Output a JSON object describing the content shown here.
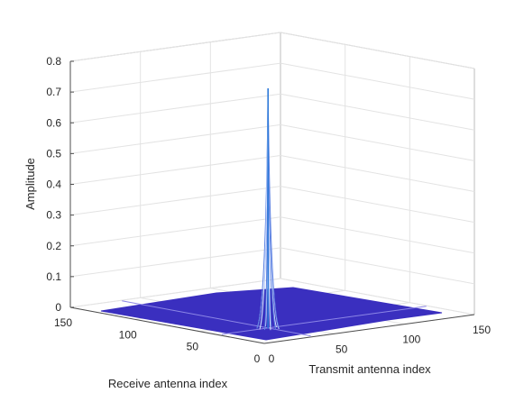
{
  "chart_data": {
    "type": "surface",
    "title": "",
    "zlabel": "Amplitude",
    "xlabel": "Transmit antenna index",
    "ylabel": "Receive antenna index",
    "x_ticks": [
      "0",
      "50",
      "100",
      "150"
    ],
    "y_ticks": [
      "0",
      "50",
      "100",
      "150"
    ],
    "z_ticks": [
      "0",
      "0.1",
      "0.2",
      "0.3",
      "0.4",
      "0.5",
      "0.6",
      "0.7",
      "0.8"
    ],
    "xlim": [
      0,
      150
    ],
    "ylim": [
      0,
      150
    ],
    "zlim": [
      0,
      0.8
    ],
    "grid": true,
    "surface_color": "#3a2fbf",
    "peak": {
      "x": 35,
      "y": 35,
      "z": 0.78
    },
    "baseline_amplitude": 0
  }
}
